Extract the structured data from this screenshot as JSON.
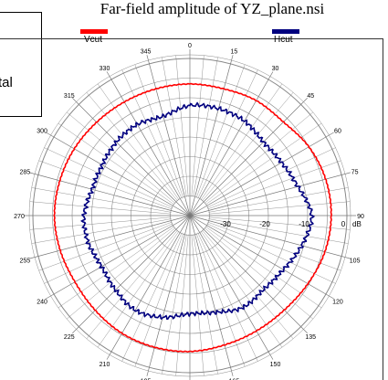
{
  "left_box_text": "tal",
  "chart_data": {
    "type": "polar",
    "title": "Far-field amplitude of YZ_plane.nsi",
    "radial_unit": "dB",
    "radial_ticks": [
      "-30",
      "-20",
      "-10",
      "0"
    ],
    "radial_range": [
      -40,
      0
    ],
    "angle_ticks": [
      "0",
      "15",
      "30",
      "45",
      "60",
      "75",
      "90",
      "105",
      "120",
      "135",
      "150",
      "165",
      "180",
      "195",
      "210",
      "225",
      "240",
      "255",
      "270",
      "285",
      "300",
      "315",
      "330",
      "345"
    ],
    "grid": true,
    "legend_position": "top",
    "series": [
      {
        "name": "Vcut",
        "color": "#ff0000",
        "angles": [
          0,
          15,
          30,
          45,
          60,
          75,
          90,
          105,
          120,
          135,
          150,
          165,
          180,
          195,
          210,
          225,
          240,
          255,
          270,
          285,
          300,
          315,
          330,
          345,
          360
        ],
        "values": [
          -6.5,
          -6.6,
          -6.2,
          -6.3,
          -5.0,
          -4.2,
          -4.0,
          -4.4,
          -5.3,
          -6.0,
          -6.1,
          -5.9,
          -5.4,
          -5.3,
          -5.4,
          -5.9,
          -6.2,
          -5.8,
          -5.5,
          -5.7,
          -6.0,
          -6.4,
          -6.6,
          -6.6,
          -6.5
        ]
      },
      {
        "name": "Hcut",
        "color": "#00007f",
        "angles": [
          0,
          15,
          30,
          45,
          60,
          75,
          90,
          105,
          120,
          135,
          150,
          165,
          180,
          195,
          210,
          225,
          240,
          255,
          270,
          285,
          300,
          315,
          330,
          345,
          360
        ],
        "values": [
          -12.0,
          -11.8,
          -12.2,
          -13.5,
          -13.0,
          -11.5,
          -9.0,
          -10.5,
          -12.5,
          -13.4,
          -13.0,
          -14.5,
          -15.0,
          -13.2,
          -12.2,
          -13.2,
          -14.0,
          -13.2,
          -13.0,
          -14.2,
          -14.2,
          -13.5,
          -13.2,
          -13.8,
          -12.0
        ]
      }
    ]
  }
}
